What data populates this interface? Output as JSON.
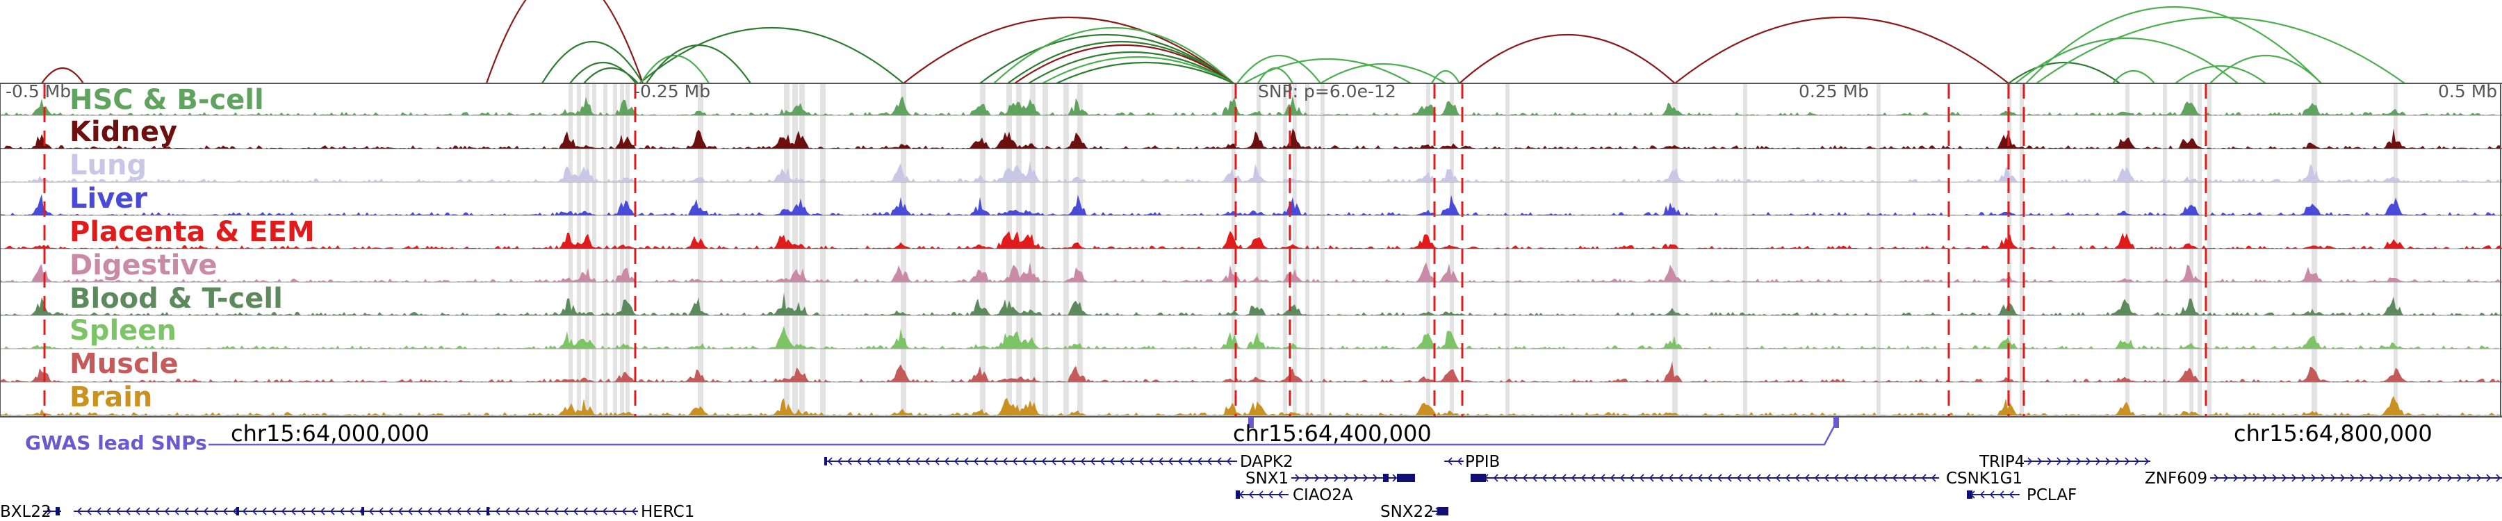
{
  "ruler": {
    "left": "-0.5 Mb",
    "left_mid": "-0.25 Mb",
    "snp": "SNP: p=6.0e-12",
    "right_mid": "0.25 Mb",
    "right": "0.5 Mb"
  },
  "coordinates": {
    "c1": "chr15:64,000,000",
    "c2": "chr15:64,400,000",
    "c3": "chr15:64,800,000"
  },
  "gwas": {
    "label": "GWAS lead SNPs"
  },
  "tracks": [
    {
      "name": "HSC & B-cell",
      "color": "#5fa35f"
    },
    {
      "name": "Kidney",
      "color": "#6b0f0f"
    },
    {
      "name": "Lung",
      "color": "#c8c8e6"
    },
    {
      "name": "Liver",
      "color": "#4a4ad9"
    },
    {
      "name": "Placenta & EEM",
      "color": "#e01b1b"
    },
    {
      "name": "Digestive",
      "color": "#c98aa6"
    },
    {
      "name": "Blood & T-cell",
      "color": "#5c8a5c"
    },
    {
      "name": "Spleen",
      "color": "#7cc466"
    },
    {
      "name": "Muscle",
      "color": "#c45a5a"
    },
    {
      "name": "Brain",
      "color": "#c89120"
    }
  ],
  "genes": {
    "dapk2": "DAPK2",
    "snx1": "SNX1",
    "ciao2a": "CIAO2A",
    "snx22": "SNX22",
    "ppib": "PPIB",
    "csnk1g1": "CSNK1G1",
    "pclaf": "PCLAF",
    "trip4": "TRIP4",
    "znf609": "ZNF609",
    "herc1": "HERC1",
    "oaz": "BXL22"
  }
}
